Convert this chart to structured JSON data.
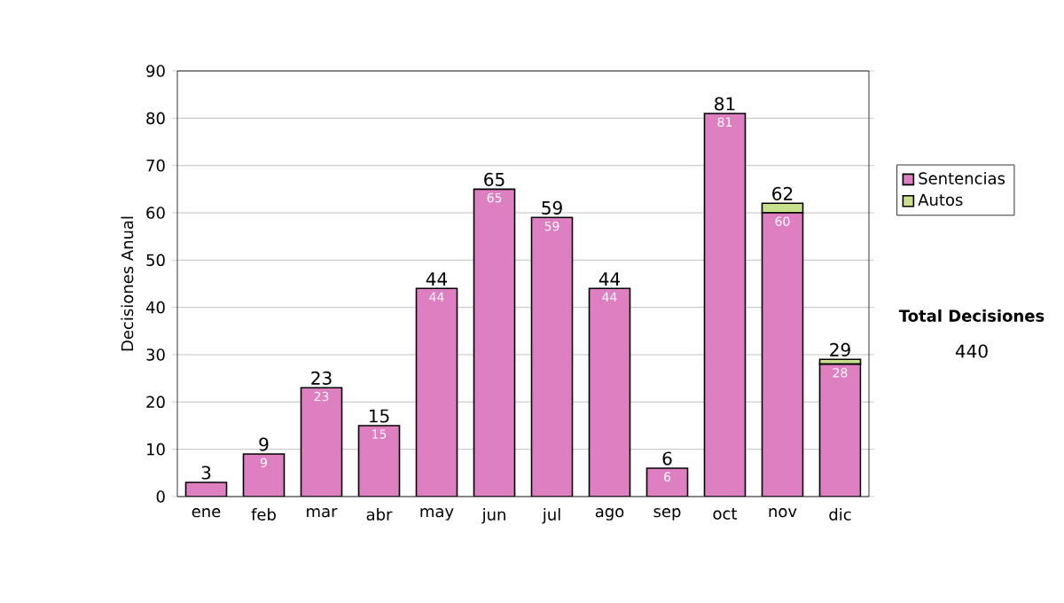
{
  "chart_data": {
    "type": "bar",
    "stacked": true,
    "ylabel": "Decisiones Anual",
    "categories": [
      "ene",
      "feb",
      "mar",
      "abr",
      "may",
      "jun",
      "jul",
      "ago",
      "sep",
      "oct",
      "nov",
      "dic"
    ],
    "series": [
      {
        "name": "Sentencias",
        "color": "#dd7fc0",
        "values": [
          3,
          9,
          23,
          15,
          44,
          65,
          59,
          44,
          6,
          81,
          60,
          28
        ],
        "value_labels": [
          null,
          "9",
          "23",
          "15",
          "44",
          "65",
          "59",
          "44",
          "6",
          "81",
          "60",
          "28"
        ]
      },
      {
        "name": "Autos",
        "color": "#c8e08c",
        "values": [
          0,
          0,
          0,
          0,
          0,
          0,
          0,
          0,
          0,
          0,
          2,
          1
        ]
      }
    ],
    "totals": [
      "3",
      "9",
      "23",
      "15",
      "44",
      "65",
      "59",
      "44",
      "6",
      "81",
      "62",
      "29"
    ],
    "ylim": [
      0,
      90
    ],
    "yticks": [
      0,
      10,
      20,
      30,
      40,
      50,
      60,
      70,
      80,
      90
    ],
    "grid": "y",
    "legend": "right",
    "annotations": [
      "Total Decisiones",
      "440"
    ]
  }
}
